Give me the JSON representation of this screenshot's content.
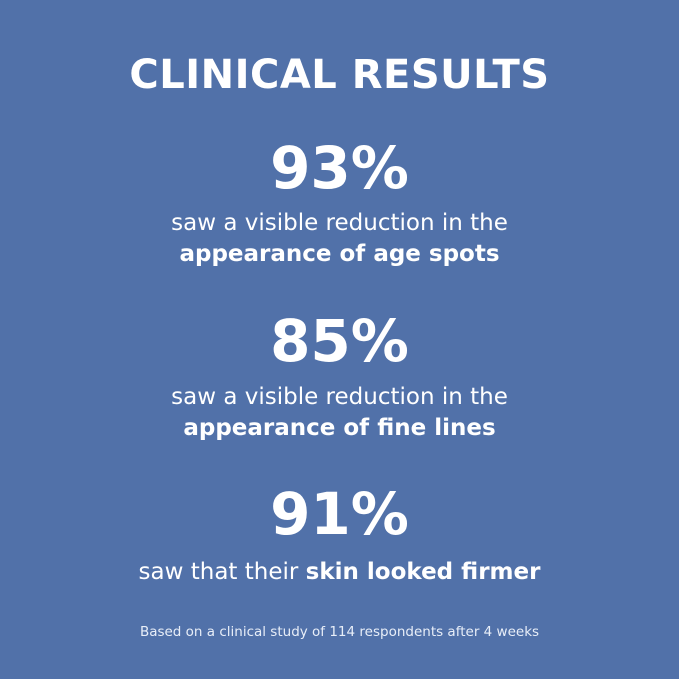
{
  "background_color": "#5171a9",
  "title": "CLINICAL RESULTS",
  "stats": [
    {
      "value": "93%",
      "line1": "saw a visible reduction in the",
      "line2_bold": "appearance of age spots"
    },
    {
      "value": "85%",
      "line1": "saw a visible reduction in the",
      "line2_bold": "appearance of fine lines"
    },
    {
      "value": "91%",
      "line_prefix": "saw that their ",
      "line_bold": "skin looked firmer"
    }
  ],
  "footnote": "Based on a clinical study of 114 respondents after 4 weeks"
}
